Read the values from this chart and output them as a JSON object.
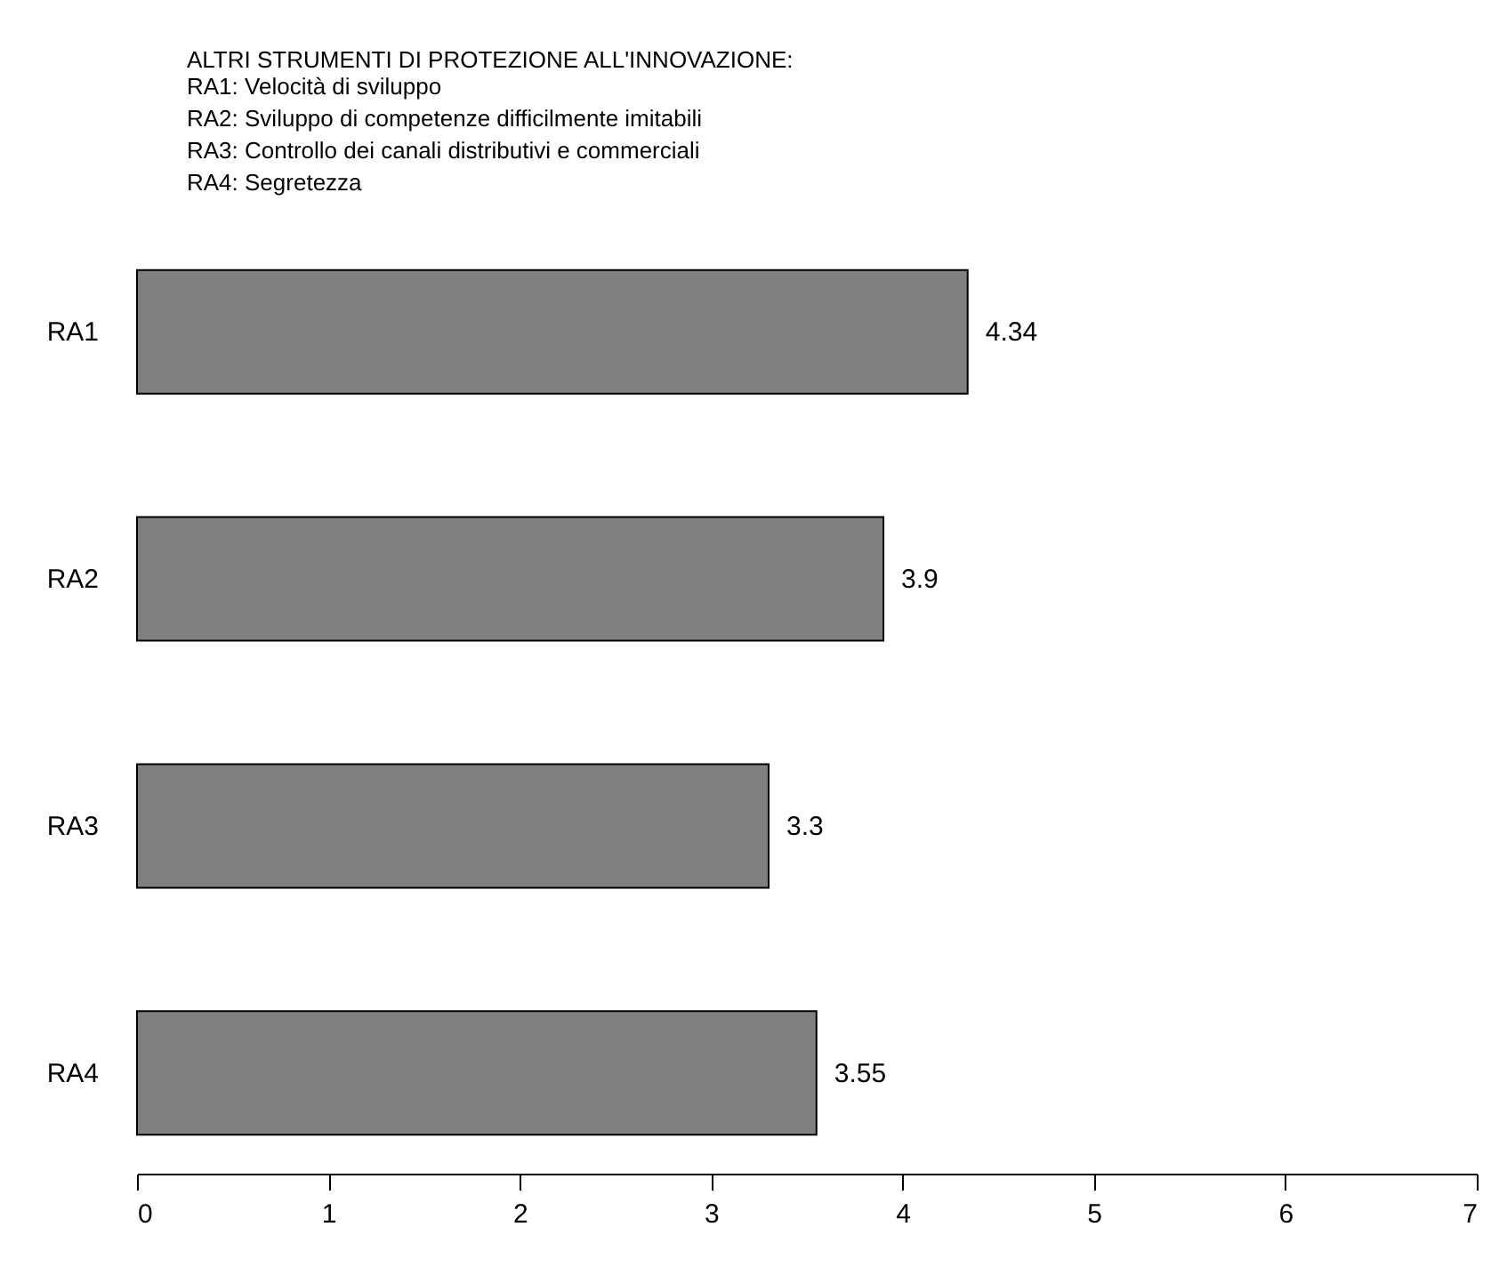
{
  "chart_data": {
    "type": "bar",
    "orientation": "horizontal",
    "title": "ALTRI STRUMENTI DI PROTEZIONE ALL'INNOVAZIONE:",
    "annotations": [
      "RA1: Velocità di sviluppo",
      "RA2: Sviluppo di competenze difficilmente imitabili",
      "RA3: Controllo dei canali distributivi e commerciali",
      "RA4: Segretezza"
    ],
    "categories": [
      "RA1",
      "RA2",
      "RA3",
      "RA4"
    ],
    "values": [
      4.34,
      3.9,
      3.3,
      3.55
    ],
    "color": "#808080",
    "xlim": [
      0,
      7
    ],
    "xticks": [
      0,
      1,
      2,
      3,
      4,
      5,
      6,
      7
    ],
    "data_labels": true,
    "grid": false
  }
}
